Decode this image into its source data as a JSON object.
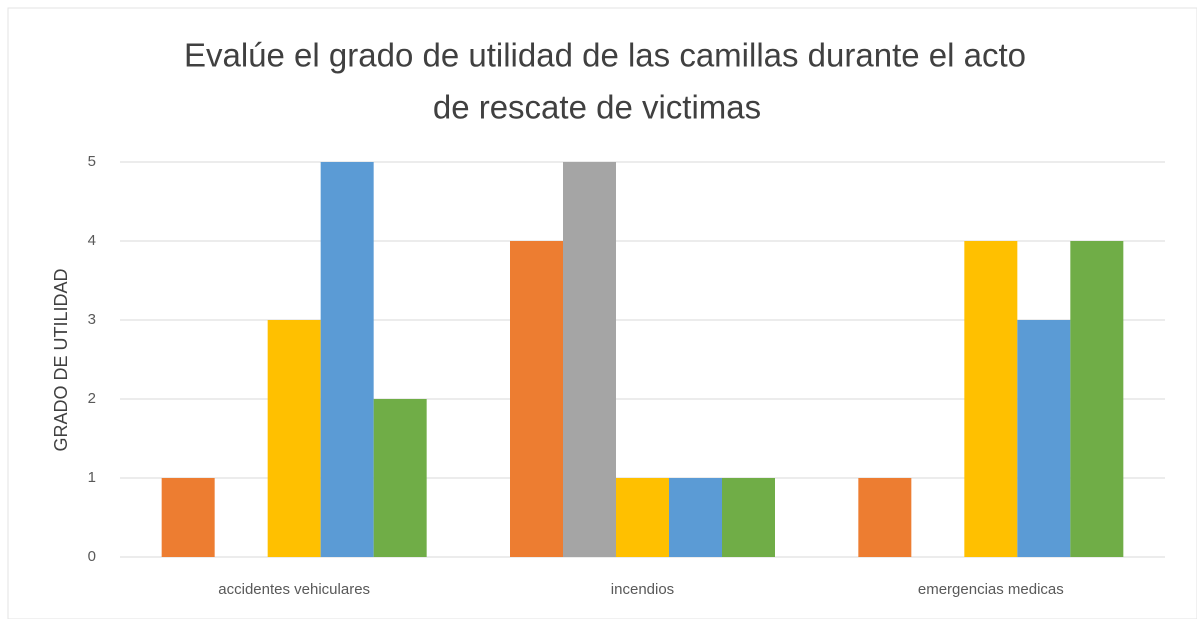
{
  "chart_data": {
    "type": "bar",
    "title": [
      "Evalúe el grado de utilidad de las camillas durante el acto",
      "de rescate de victimas"
    ],
    "y_label": "GRADO DE UTILIDAD",
    "categories": [
      "accidentes vehiculares",
      "incendios",
      "emergencias medicas"
    ],
    "series": [
      {
        "color": "#ed7d31",
        "values": [
          1,
          4,
          1
        ]
      },
      {
        "color": "#a5a5a5",
        "values": [
          0,
          5,
          0
        ]
      },
      {
        "color": "#ffc000",
        "values": [
          3,
          1,
          4
        ]
      },
      {
        "color": "#5b9bd5",
        "values": [
          5,
          1,
          3
        ]
      },
      {
        "color": "#70ad47",
        "values": [
          2,
          1,
          4
        ]
      }
    ],
    "ylim": [
      0,
      5
    ],
    "yticks": [
      0,
      1,
      2,
      3,
      4,
      5
    ],
    "grid": true
  }
}
